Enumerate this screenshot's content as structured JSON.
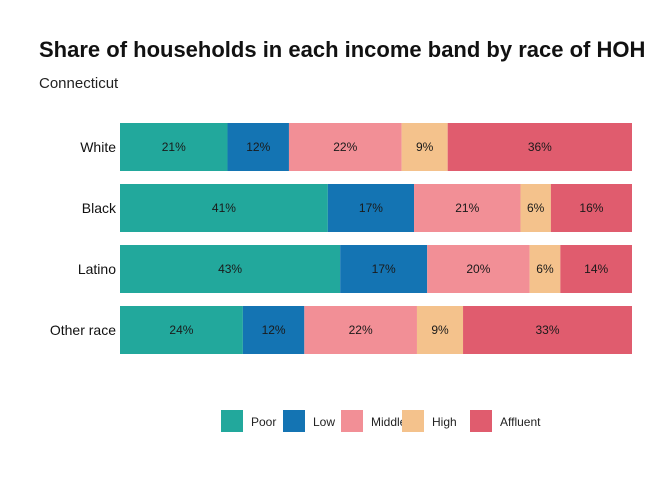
{
  "chart_data": {
    "type": "bar",
    "orientation": "horizontal",
    "stacked": true,
    "title": "Share of households in each income band by race of HOH",
    "subtitle": "Connecticut",
    "categories": [
      "White",
      "Black",
      "Latino",
      "Other race"
    ],
    "series": [
      {
        "name": "Poor",
        "color": "#22a89c",
        "values": [
          21,
          41,
          43,
          24
        ],
        "labels": [
          "21%",
          "41%",
          "43%",
          "24%"
        ]
      },
      {
        "name": "Low",
        "color": "#1474b3",
        "values": [
          12,
          17,
          17,
          12
        ],
        "labels": [
          "12%",
          "17%",
          "17%",
          "12%"
        ]
      },
      {
        "name": "Middle",
        "color": "#f28f96",
        "values": [
          22,
          21,
          20,
          22
        ],
        "labels": [
          "22%",
          "21%",
          "20%",
          "22%"
        ]
      },
      {
        "name": "High",
        "color": "#f4c28c",
        "values": [
          9,
          6,
          6,
          9
        ],
        "labels": [
          "9%",
          "6%",
          "6%",
          "9%"
        ]
      },
      {
        "name": "Affluent",
        "color": "#e05c6e",
        "values": [
          36,
          16,
          14,
          33
        ],
        "labels": [
          "36%",
          "16%",
          "14%",
          "33%"
        ]
      }
    ],
    "grid": false,
    "legend_position": "bottom"
  }
}
